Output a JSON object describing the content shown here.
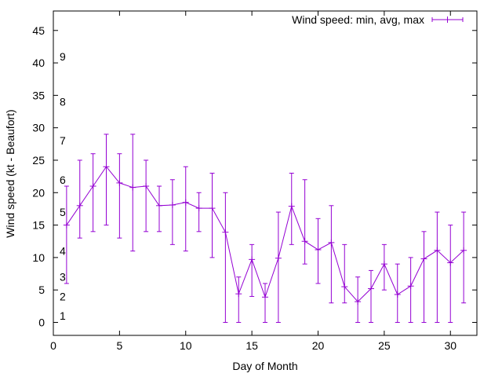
{
  "chart_data": {
    "type": "line",
    "xlabel": "Day of Month",
    "ylabel": "Wind speed (kt - Beaufort)",
    "xlim": [
      0,
      32
    ],
    "ylim": [
      -2,
      48
    ],
    "xticks": [
      0,
      5,
      10,
      15,
      20,
      25,
      30
    ],
    "yticks": [
      0,
      5,
      10,
      15,
      20,
      25,
      30,
      35,
      40,
      45
    ],
    "grid": false,
    "legend_position": "top-right",
    "beaufort_labels": [
      {
        "label": "1",
        "y": 1
      },
      {
        "label": "2",
        "y": 4
      },
      {
        "label": "3",
        "y": 7
      },
      {
        "label": "4",
        "y": 11
      },
      {
        "label": "5",
        "y": 17
      },
      {
        "label": "6",
        "y": 22
      },
      {
        "label": "7",
        "y": 28
      },
      {
        "label": "8",
        "y": 34
      },
      {
        "label": "9",
        "y": 41
      }
    ],
    "series": [
      {
        "name": "Wind speed: min, avg, max",
        "color": "#9400d3",
        "x": [
          1,
          2,
          3,
          4,
          5,
          6,
          7,
          8,
          9,
          10,
          11,
          12,
          13,
          14,
          15,
          16,
          17,
          18,
          19,
          20,
          21,
          22,
          23,
          24,
          25,
          26,
          27,
          28,
          29,
          30,
          31
        ],
        "avg": [
          15,
          18,
          21,
          24,
          21.5,
          20.8,
          21,
          18,
          18.1,
          18.5,
          17.6,
          17.6,
          13.9,
          4.4,
          9.7,
          3.9,
          9.9,
          17.9,
          12.5,
          11.2,
          12.3,
          5.5,
          3.2,
          5.2,
          9,
          4.3,
          5.6,
          9.8,
          11.1,
          9.2,
          11.1
        ],
        "min": [
          6,
          13,
          14,
          15,
          13,
          11,
          14,
          14,
          12,
          11,
          14,
          10,
          0,
          0,
          4,
          0,
          0,
          12,
          9,
          6,
          3,
          3,
          0,
          0,
          5,
          0,
          0,
          0,
          0,
          0,
          3
        ],
        "max": [
          21,
          25,
          26,
          29,
          26,
          29,
          25,
          21,
          22,
          24,
          20,
          23,
          20,
          7,
          12,
          6,
          17,
          23,
          22,
          16,
          18,
          12,
          7,
          8,
          12,
          9,
          10,
          14,
          17,
          15,
          17
        ]
      }
    ]
  }
}
